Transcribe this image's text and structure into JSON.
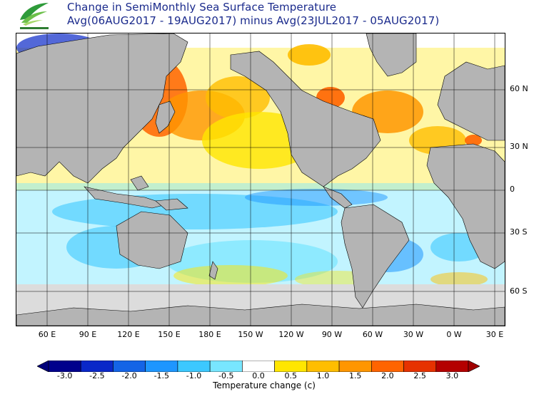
{
  "title": {
    "line1": "Change in SemiMonthly Sea Surface Temperature",
    "line2": "Avg(06AUG2017 - 19AUG2017) minus Avg(23JUL2017 - 05AUG2017)"
  },
  "map": {
    "projection": "equirectangular, centered on Pacific",
    "land_color": "#b4b4b4",
    "ice_color": "#dcdcdc",
    "ocean_color": "#ffffff",
    "latitude_labels": [
      "60 N",
      "30 N",
      "0",
      "30 S",
      "60 S"
    ],
    "longitude_labels": [
      "60 E",
      "90 E",
      "120 E",
      "150 E",
      "180 E",
      "150 W",
      "120 W",
      "90 W",
      "60 W",
      "30 W",
      "0 W",
      "30 E"
    ]
  },
  "colorbar": {
    "label": "Temperature change  (c)",
    "ticks": [
      "-3.0",
      "-2.5",
      "-2.0",
      "-1.5",
      "-1.0",
      "-0.5",
      "0.0",
      "0.5",
      "1.0",
      "1.5",
      "2.0",
      "2.5",
      "3.0"
    ],
    "colors": [
      "#00008c",
      "#0a28c8",
      "#1464e6",
      "#1e96ff",
      "#3cc8ff",
      "#78e6ff",
      "#ffffff",
      "#ffe600",
      "#ffbe00",
      "#ff9600",
      "#ff6400",
      "#e63200",
      "#b40000"
    ],
    "underflow_color": "#00007a",
    "overflow_color": "#a00000"
  }
}
